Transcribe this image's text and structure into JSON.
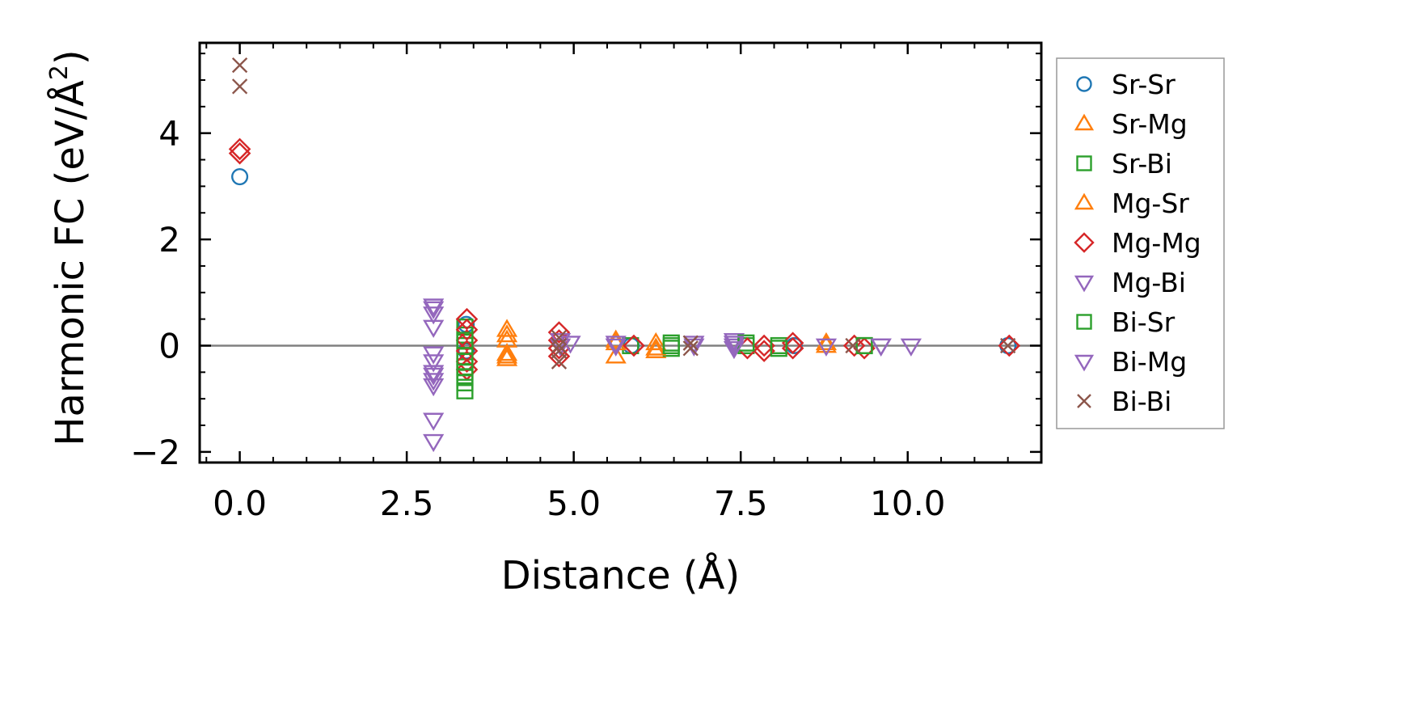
{
  "chart_data": {
    "type": "scatter",
    "xlabel": "Distance (Å)",
    "ylabel_main": "Harmonic FC (eV/Å",
    "ylabel_sup": "2",
    "ylabel_tail": ")",
    "xlim": [
      -0.6,
      12.0
    ],
    "ylim": [
      -2.2,
      5.7
    ],
    "xticks": [
      0.0,
      2.5,
      5.0,
      7.5,
      10.0
    ],
    "xtick_labels": [
      "0.0",
      "2.5",
      "5.0",
      "7.5",
      "10.0"
    ],
    "yticks": [
      -2,
      0,
      2,
      4
    ],
    "ytick_labels": [
      "−2",
      "0",
      "2",
      "4"
    ],
    "zero_line": true,
    "legend_position": "right, outside plot",
    "series": [
      {
        "name": "Sr-Sr",
        "marker": "circle",
        "color": "#1f77b4",
        "points": [
          [
            0,
            3.18
          ],
          [
            3.39,
            0.4
          ],
          [
            3.39,
            -0.1
          ],
          [
            5.86,
            0.0
          ],
          [
            8.3,
            0.0
          ],
          [
            11.5,
            0.0
          ]
        ]
      },
      {
        "name": "Sr-Mg",
        "marker": "triangle-up",
        "color": "#ff7f0e",
        "points": [
          [
            4.0,
            0.3
          ],
          [
            4.0,
            0.1
          ],
          [
            4.0,
            -0.15
          ],
          [
            4.0,
            -0.25
          ],
          [
            5.63,
            0.1
          ],
          [
            5.63,
            -0.2
          ],
          [
            6.23,
            0.05
          ],
          [
            6.23,
            -0.1
          ],
          [
            8.78,
            0.0
          ]
        ]
      },
      {
        "name": "Sr-Bi",
        "marker": "square",
        "color": "#2ca02c",
        "points": [
          [
            3.37,
            -0.85
          ],
          [
            3.37,
            -0.6
          ],
          [
            3.37,
            -0.4
          ],
          [
            3.37,
            -0.2
          ],
          [
            3.37,
            0.0
          ],
          [
            3.37,
            0.2
          ],
          [
            3.37,
            0.35
          ],
          [
            5.85,
            0.0
          ],
          [
            6.46,
            0.05
          ],
          [
            6.46,
            -0.05
          ],
          [
            7.58,
            0.0
          ],
          [
            8.07,
            0.0
          ],
          [
            9.35,
            0.0
          ]
        ]
      },
      {
        "name": "Mg-Sr",
        "marker": "triangle-up",
        "color": "#ff7f0e",
        "points": [
          [
            4.0,
            0.2
          ],
          [
            4.0,
            -0.2
          ],
          [
            5.63,
            0.05
          ],
          [
            6.23,
            -0.05
          ],
          [
            8.78,
            0.05
          ]
        ]
      },
      {
        "name": "Mg-Mg",
        "marker": "diamond",
        "color": "#d62728",
        "points": [
          [
            0,
            3.7
          ],
          [
            0,
            3.62
          ],
          [
            3.4,
            0.5
          ],
          [
            3.4,
            0.3
          ],
          [
            3.4,
            0.1
          ],
          [
            3.4,
            -0.1
          ],
          [
            3.4,
            -0.3
          ],
          [
            3.4,
            -0.45
          ],
          [
            4.78,
            0.25
          ],
          [
            4.78,
            0.1
          ],
          [
            4.78,
            -0.05
          ],
          [
            4.78,
            -0.2
          ],
          [
            5.9,
            0.0
          ],
          [
            7.6,
            -0.05
          ],
          [
            7.85,
            0.0
          ],
          [
            7.85,
            -0.1
          ],
          [
            8.28,
            0.05
          ],
          [
            8.28,
            -0.05
          ],
          [
            9.2,
            0.0
          ],
          [
            9.35,
            -0.05
          ],
          [
            11.52,
            0.0
          ]
        ]
      },
      {
        "name": "Mg-Bi",
        "marker": "triangle-down",
        "color": "#9467bd",
        "points": [
          [
            2.9,
            0.75
          ],
          [
            2.9,
            0.6
          ],
          [
            2.9,
            0.35
          ],
          [
            2.9,
            -0.15
          ],
          [
            2.9,
            -0.3
          ],
          [
            2.9,
            -0.5
          ],
          [
            2.9,
            -0.65
          ],
          [
            2.9,
            -1.4
          ],
          [
            2.9,
            -1.8
          ],
          [
            4.8,
            0.1
          ],
          [
            4.95,
            0.05
          ],
          [
            5.63,
            0.0
          ],
          [
            6.8,
            0.05
          ],
          [
            7.4,
            0.1
          ],
          [
            7.4,
            0.0
          ],
          [
            8.78,
            0.0
          ],
          [
            9.6,
            0.0
          ],
          [
            10.05,
            0.0
          ]
        ]
      },
      {
        "name": "Bi-Sr",
        "marker": "square",
        "color": "#2ca02c",
        "points": [
          [
            3.37,
            -0.7
          ],
          [
            3.37,
            -0.5
          ],
          [
            3.37,
            -0.3
          ],
          [
            3.37,
            0.1
          ],
          [
            6.46,
            0.0
          ],
          [
            7.58,
            0.05
          ],
          [
            8.07,
            -0.05
          ],
          [
            9.35,
            0.0
          ]
        ]
      },
      {
        "name": "Bi-Mg",
        "marker": "triangle-down",
        "color": "#9467bd",
        "points": [
          [
            2.9,
            0.7
          ],
          [
            2.9,
            -0.55
          ],
          [
            2.9,
            -0.75
          ],
          [
            4.8,
            0.0
          ],
          [
            5.63,
            0.05
          ],
          [
            6.8,
            0.0
          ],
          [
            7.4,
            0.05
          ],
          [
            7.4,
            -0.05
          ],
          [
            9.6,
            0.0
          ]
        ]
      },
      {
        "name": "Bi-Bi",
        "marker": "x",
        "color": "#8c564b",
        "points": [
          [
            0,
            5.28
          ],
          [
            0,
            4.88
          ],
          [
            4.78,
            0.15
          ],
          [
            4.78,
            0.0
          ],
          [
            4.78,
            -0.1
          ],
          [
            4.78,
            -0.3
          ],
          [
            6.75,
            0.05
          ],
          [
            6.75,
            -0.05
          ],
          [
            9.18,
            0.0
          ],
          [
            11.5,
            0.0
          ]
        ]
      }
    ]
  }
}
